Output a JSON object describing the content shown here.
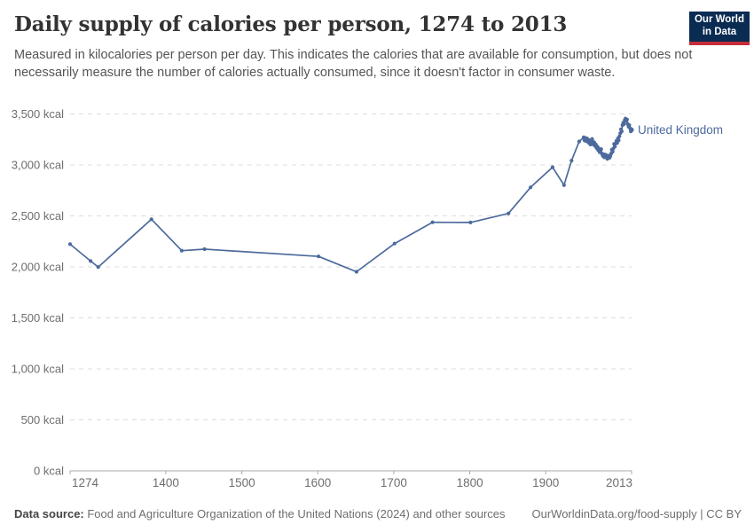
{
  "header": {
    "title": "Daily supply of calories per person, 1274 to 2013",
    "subtitle": "Measured in kilocalories per person per day. This indicates the calories that are available for consumption, but does not necessarily measure the number of calories actually consumed, since it doesn't factor in consumer waste.",
    "logo": {
      "line1": "Our World",
      "line2": "in Data",
      "bg": "#0a2b52",
      "accent": "#c52d3a"
    }
  },
  "chart_data": {
    "type": "line",
    "title": "Daily supply of calories per person, 1274 to 2013",
    "xlabel": "",
    "ylabel": "",
    "xlim": [
      1274,
      2013
    ],
    "ylim": [
      0,
      3500
    ],
    "x_ticks": [
      1274,
      1400,
      1500,
      1600,
      1700,
      1800,
      1900,
      2013
    ],
    "x_tick_labels": [
      "1274",
      "1400",
      "1500",
      "1600",
      "1700",
      "1800",
      "1900",
      "2013"
    ],
    "y_ticks": [
      0,
      500,
      1000,
      1500,
      2000,
      2500,
      3000,
      3500
    ],
    "y_tick_labels": [
      "0 kcal",
      "500 kcal",
      "1,000 kcal",
      "1,500 kcal",
      "2,000 kcal",
      "2,500 kcal",
      "3,000 kcal",
      "3,500 kcal"
    ],
    "grid": "horizontal-dashed",
    "grid_color": "#dcdcdc",
    "axis_color": "#a8a8a8",
    "tick_label_color": "#6e6e6e",
    "legend_position": "end-of-line-label",
    "series": [
      {
        "name": "United Kingdom",
        "color": "#4c6a9c",
        "points": [
          [
            1274,
            2223
          ],
          [
            1301,
            2057
          ],
          [
            1311,
            1998
          ],
          [
            1381,
            2467
          ],
          [
            1421,
            2159
          ],
          [
            1451,
            2174
          ],
          [
            1601,
            2103
          ],
          [
            1651,
            1952
          ],
          [
            1701,
            2229
          ],
          [
            1751,
            2437
          ],
          [
            1801,
            2436
          ],
          [
            1851,
            2524
          ],
          [
            1880,
            2780
          ],
          [
            1909,
            2977
          ],
          [
            1924,
            2802
          ],
          [
            1934,
            3042
          ],
          [
            1944,
            3230
          ],
          [
            1950,
            3270
          ],
          [
            1951,
            3240
          ],
          [
            1952,
            3265
          ],
          [
            1953,
            3235
          ],
          [
            1954,
            3260
          ],
          [
            1955,
            3230
          ],
          [
            1956,
            3250
          ],
          [
            1957,
            3215
          ],
          [
            1958,
            3235
          ],
          [
            1959,
            3200
          ],
          [
            1960,
            3225
          ],
          [
            1961,
            3255
          ],
          [
            1962,
            3230
          ],
          [
            1963,
            3200
          ],
          [
            1964,
            3220
          ],
          [
            1965,
            3185
          ],
          [
            1966,
            3200
          ],
          [
            1967,
            3165
          ],
          [
            1968,
            3180
          ],
          [
            1969,
            3145
          ],
          [
            1970,
            3160
          ],
          [
            1971,
            3125
          ],
          [
            1972,
            3140
          ],
          [
            1973,
            3155
          ],
          [
            1974,
            3110
          ],
          [
            1975,
            3090
          ],
          [
            1976,
            3105
          ],
          [
            1977,
            3075
          ],
          [
            1978,
            3090
          ],
          [
            1979,
            3100
          ],
          [
            1980,
            3080
          ],
          [
            1981,
            3060
          ],
          [
            1982,
            3075
          ],
          [
            1983,
            3090
          ],
          [
            1984,
            3070
          ],
          [
            1985,
            3085
          ],
          [
            1986,
            3110
          ],
          [
            1987,
            3150
          ],
          [
            1988,
            3130
          ],
          [
            1989,
            3160
          ],
          [
            1990,
            3205
          ],
          [
            1991,
            3180
          ],
          [
            1992,
            3210
          ],
          [
            1993,
            3235
          ],
          [
            1994,
            3215
          ],
          [
            1995,
            3260
          ],
          [
            1996,
            3240
          ],
          [
            1997,
            3280
          ],
          [
            1998,
            3310
          ],
          [
            1999,
            3350
          ],
          [
            2000,
            3330
          ],
          [
            2001,
            3390
          ],
          [
            2002,
            3415
          ],
          [
            2003,
            3400
          ],
          [
            2004,
            3440
          ],
          [
            2005,
            3455
          ],
          [
            2006,
            3430
          ],
          [
            2007,
            3445
          ],
          [
            2008,
            3400
          ],
          [
            2009,
            3375
          ],
          [
            2010,
            3390
          ],
          [
            2011,
            3360
          ],
          [
            2012,
            3330
          ],
          [
            2013,
            3344
          ]
        ]
      }
    ]
  },
  "footer": {
    "datasource_label": "Data source:",
    "datasource_text": " Food and Agriculture Organization of the United Nations (2024) and other sources",
    "credit": "OurWorldinData.org/food-supply | CC BY"
  }
}
